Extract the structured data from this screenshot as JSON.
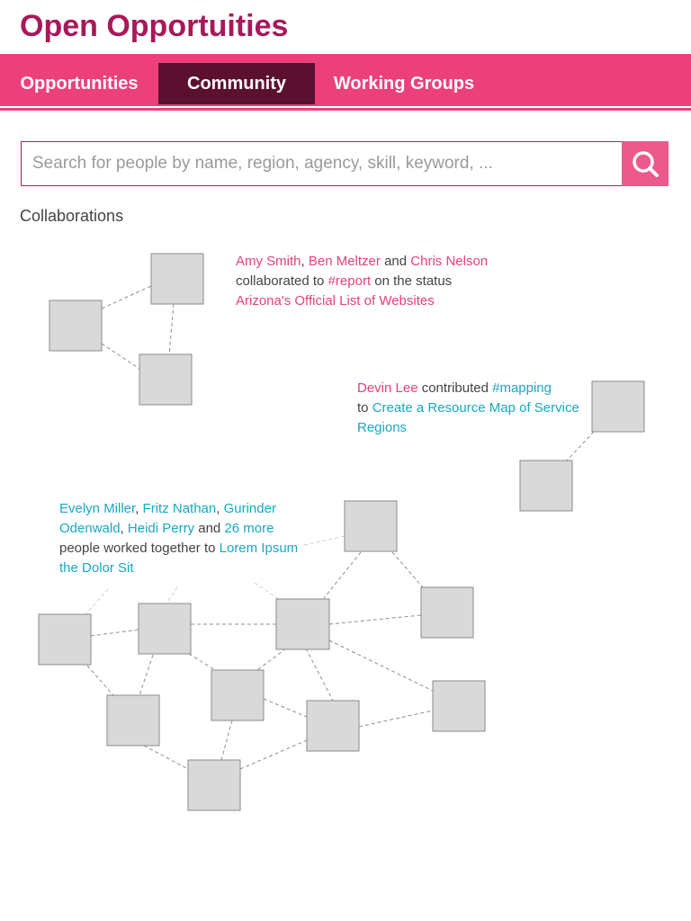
{
  "header": {
    "title": "Open Opportuities"
  },
  "nav": {
    "items": [
      {
        "label": "Opportunities",
        "active": false
      },
      {
        "label": "Community",
        "active": true
      },
      {
        "label": "Working Groups",
        "active": false
      }
    ]
  },
  "search": {
    "placeholder": "Search for people by name, region, agency, skill, keyword, ...",
    "icon": "search-icon"
  },
  "collaborations": {
    "heading": "Collaborations",
    "items": [
      {
        "people": [
          "Amy Smith",
          "Ben Meltzer",
          "Chris Nelson"
        ],
        "sep1": ", ",
        "sep2": " and ",
        "verb": "collaborated to",
        "tag": "#report",
        "verb2": "on the status",
        "project": "Arizona's Official List of Websites",
        "link_color": "#e8417a"
      },
      {
        "people": [
          "Devin Lee"
        ],
        "verb": "contributed",
        "tag": "#mapping",
        "verb2": "to",
        "project": "Create a Resource Map of Service Regions",
        "people_color": "#e8417a",
        "link_color": "#17a9c4"
      },
      {
        "people": [
          "Evelyn Miller",
          "Fritz Nathan",
          "Gurinder Odenwald",
          "Heidi Perry"
        ],
        "sep1": ", ",
        "sep2": " and ",
        "more": "26 more",
        "verb": "people worked together to",
        "project": "Lorem Ipsum the Dolor Sit",
        "link_color": "#17a9c4"
      }
    ]
  },
  "colors": {
    "brand_dark": "#a8185a",
    "nav_bg": "#ec407a",
    "nav_active_bg": "#5c1030",
    "pink_link": "#e8417a",
    "teal_link": "#17a9c4",
    "node_fill": "#d9d9d9"
  }
}
